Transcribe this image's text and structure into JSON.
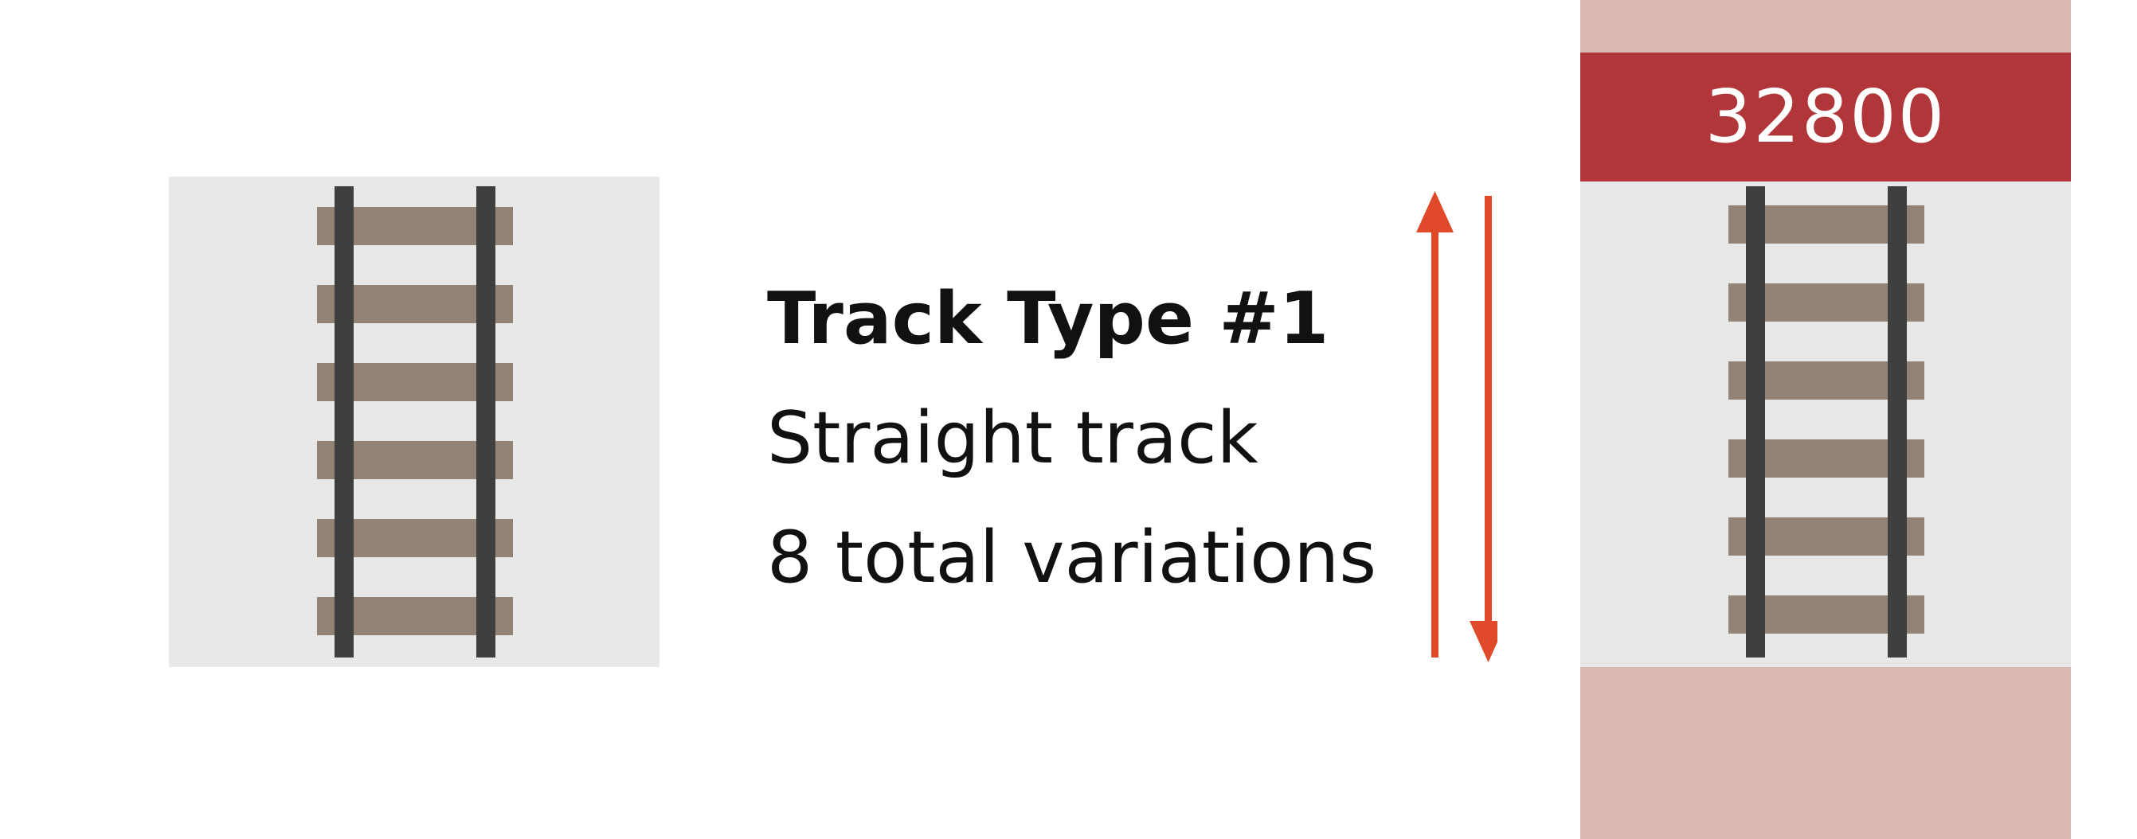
{
  "track": {
    "title": "Track Type #1",
    "description": "Straight track",
    "variations": "8 total variations",
    "id": "32800"
  },
  "icons": {
    "left_tile": "straight-track-icon",
    "right_tile": "straight-track-icon",
    "arrows": "up-down-arrows-icon"
  },
  "colors": {
    "tile_background": "#e8e8e8",
    "tie": "#918477",
    "rail": "#3f3f3f",
    "arrow": "#e04a2a",
    "column_background": "#dcb8b2",
    "id_banner": "#b13639"
  }
}
